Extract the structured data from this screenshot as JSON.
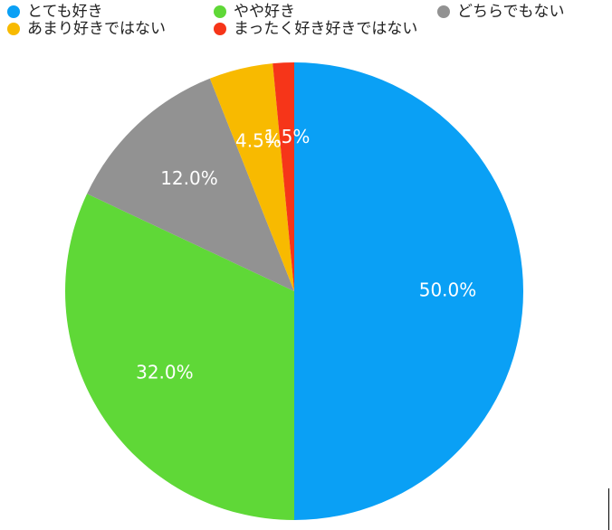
{
  "chart_data": {
    "type": "pie",
    "categories": [
      "とても好き",
      "やや好き",
      "どちらでもない",
      "あまり好きではない",
      "まったく好き好きではない"
    ],
    "values": [
      50,
      32,
      12,
      4.5,
      1.5
    ],
    "value_labels": [
      "50.0%",
      "32.0%",
      "12.0%",
      "4.5%",
      "1.5%"
    ],
    "colors": [
      "#0aa0f5",
      "#5fd837",
      "#929292",
      "#f8ba00",
      "#f63519"
    ]
  }
}
